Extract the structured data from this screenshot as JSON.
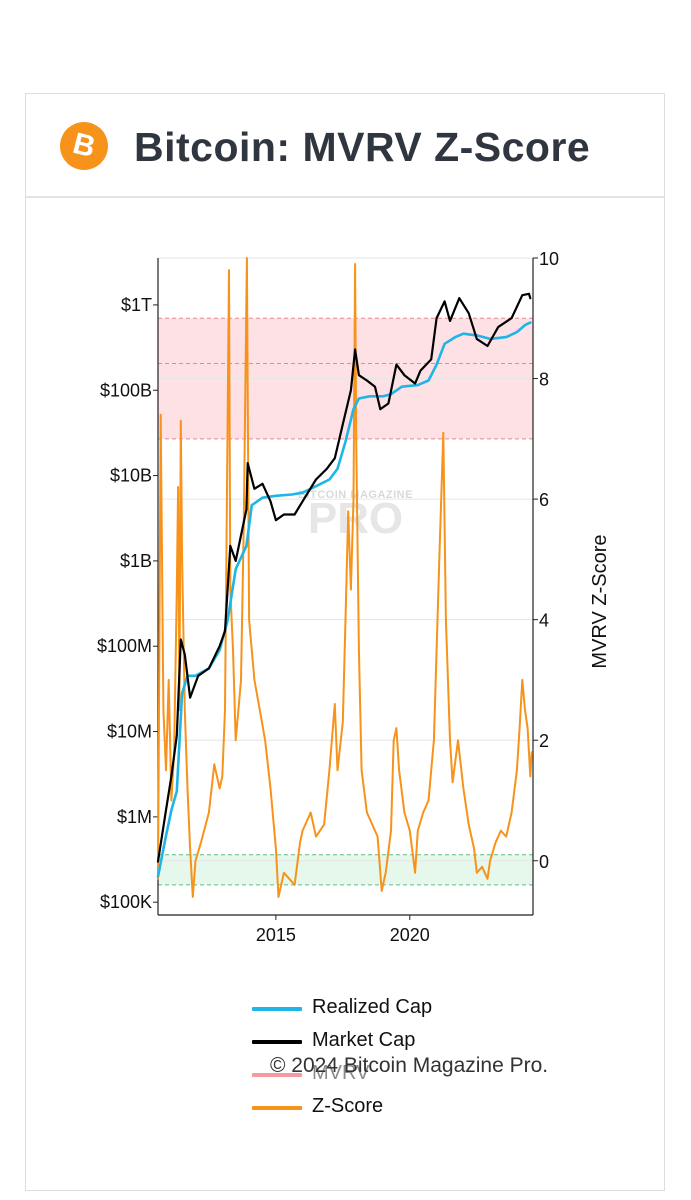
{
  "header": {
    "title": "Bitcoin: MVRV Z-Score",
    "logo_glyph": "B"
  },
  "chart_data": {
    "type": "line",
    "title": "Bitcoin: MVRV Z-Score",
    "left_axis": {
      "scale": "log",
      "ticks": [
        {
          "label": "$100K",
          "value": 100000
        },
        {
          "label": "$1M",
          "value": 1000000
        },
        {
          "label": "$10M",
          "value": 10000000
        },
        {
          "label": "$100M",
          "value": 100000000
        },
        {
          "label": "$1B",
          "value": 1000000000
        },
        {
          "label": "$10B",
          "value": 10000000000
        },
        {
          "label": "$100B",
          "value": 100000000000
        },
        {
          "label": "$1T",
          "value": 1000000000000
        }
      ]
    },
    "right_axis": {
      "label": "MVRV Z-Score",
      "ylim": [
        -0.9,
        10
      ],
      "ticks": [
        "0",
        "2",
        "4",
        "6",
        "8",
        "10"
      ]
    },
    "x_axis": {
      "range": [
        2010.6,
        2024.6
      ],
      "ticks": [
        {
          "label": "2015",
          "value": 2015
        },
        {
          "label": "2020",
          "value": 2020
        }
      ]
    },
    "bands": [
      {
        "name": "overvalued",
        "zmin": 7.0,
        "zmax": 9.0,
        "color": "#fde1e4",
        "lines": [
          7.0,
          8.25,
          9.0
        ]
      },
      {
        "name": "undervalued",
        "zmin": -0.4,
        "zmax": 0.1,
        "color": "#e6f7ec",
        "lines": [
          -0.4,
          0.1
        ]
      }
    ],
    "series": [
      {
        "name": "Realized Cap",
        "axis": "left",
        "color": "#1fb5e6",
        "points": [
          [
            2010.6,
            200000
          ],
          [
            2010.9,
            600000
          ],
          [
            2011.1,
            1200000
          ],
          [
            2011.3,
            2000000
          ],
          [
            2011.5,
            28000000
          ],
          [
            2011.7,
            45000000
          ],
          [
            2012.0,
            45000000
          ],
          [
            2012.5,
            55000000
          ],
          [
            2012.9,
            90000000
          ],
          [
            2013.2,
            200000000
          ],
          [
            2013.5,
            800000000
          ],
          [
            2013.9,
            1500000000
          ],
          [
            2014.1,
            4500000000
          ],
          [
            2014.5,
            5500000000
          ],
          [
            2015.0,
            5800000000
          ],
          [
            2015.6,
            6000000000
          ],
          [
            2016.0,
            6300000000
          ],
          [
            2016.5,
            7500000000
          ],
          [
            2017.0,
            9000000000
          ],
          [
            2017.3,
            12000000000
          ],
          [
            2017.6,
            25000000000
          ],
          [
            2017.9,
            60000000000
          ],
          [
            2018.1,
            80000000000
          ],
          [
            2018.5,
            85000000000
          ],
          [
            2019.0,
            85000000000
          ],
          [
            2019.3,
            90000000000
          ],
          [
            2019.7,
            110000000000
          ],
          [
            2020.3,
            115000000000
          ],
          [
            2020.7,
            130000000000
          ],
          [
            2021.0,
            200000000000
          ],
          [
            2021.3,
            350000000000
          ],
          [
            2021.7,
            420000000000
          ],
          [
            2022.0,
            460000000000
          ],
          [
            2022.5,
            440000000000
          ],
          [
            2023.0,
            400000000000
          ],
          [
            2023.6,
            420000000000
          ],
          [
            2024.0,
            480000000000
          ],
          [
            2024.3,
            580000000000
          ],
          [
            2024.5,
            620000000000
          ]
        ]
      },
      {
        "name": "Market Cap",
        "axis": "left",
        "color": "#000000",
        "points": [
          [
            2010.6,
            300000
          ],
          [
            2010.9,
            1200000
          ],
          [
            2011.1,
            3000000
          ],
          [
            2011.3,
            9000000
          ],
          [
            2011.45,
            120000000
          ],
          [
            2011.6,
            80000000
          ],
          [
            2011.8,
            25000000
          ],
          [
            2012.1,
            45000000
          ],
          [
            2012.5,
            55000000
          ],
          [
            2012.9,
            100000000
          ],
          [
            2013.1,
            150000000
          ],
          [
            2013.3,
            1500000000
          ],
          [
            2013.5,
            1000000000
          ],
          [
            2013.9,
            4000000000
          ],
          [
            2013.95,
            14000000000
          ],
          [
            2014.2,
            7000000000
          ],
          [
            2014.5,
            8000000000
          ],
          [
            2014.8,
            5000000000
          ],
          [
            2015.0,
            3000000000
          ],
          [
            2015.3,
            3500000000
          ],
          [
            2015.7,
            3500000000
          ],
          [
            2016.0,
            5000000000
          ],
          [
            2016.5,
            9000000000
          ],
          [
            2016.9,
            12000000000
          ],
          [
            2017.2,
            16000000000
          ],
          [
            2017.5,
            40000000000
          ],
          [
            2017.8,
            100000000000
          ],
          [
            2017.96,
            300000000000
          ],
          [
            2018.1,
            150000000000
          ],
          [
            2018.4,
            130000000000
          ],
          [
            2018.7,
            110000000000
          ],
          [
            2018.9,
            60000000000
          ],
          [
            2019.2,
            70000000000
          ],
          [
            2019.5,
            200000000000
          ],
          [
            2019.8,
            150000000000
          ],
          [
            2020.2,
            120000000000
          ],
          [
            2020.4,
            170000000000
          ],
          [
            2020.8,
            230000000000
          ],
          [
            2021.0,
            700000000000
          ],
          [
            2021.3,
            1100000000000
          ],
          [
            2021.5,
            650000000000
          ],
          [
            2021.85,
            1200000000000
          ],
          [
            2022.2,
            800000000000
          ],
          [
            2022.5,
            400000000000
          ],
          [
            2022.9,
            330000000000
          ],
          [
            2023.3,
            550000000000
          ],
          [
            2023.8,
            700000000000
          ],
          [
            2024.2,
            1300000000000
          ],
          [
            2024.45,
            1350000000000
          ],
          [
            2024.5,
            1200000000000
          ]
        ]
      },
      {
        "name": "MVRV",
        "axis": "right",
        "color": "#f39aa0",
        "points": []
      },
      {
        "name": "Z-Score",
        "axis": "right",
        "color": "#f7931a",
        "points": [
          [
            2010.6,
            -0.3
          ],
          [
            2010.7,
            7.4
          ],
          [
            2010.8,
            2.5
          ],
          [
            2010.9,
            1.5
          ],
          [
            2011.0,
            3.0
          ],
          [
            2011.1,
            1.0
          ],
          [
            2011.2,
            1.8
          ],
          [
            2011.3,
            4.5
          ],
          [
            2011.35,
            6.2
          ],
          [
            2011.4,
            2.5
          ],
          [
            2011.45,
            7.3
          ],
          [
            2011.5,
            5.0
          ],
          [
            2011.6,
            2.5
          ],
          [
            2011.7,
            1.2
          ],
          [
            2011.8,
            0.2
          ],
          [
            2011.9,
            -0.6
          ],
          [
            2012.0,
            0.0
          ],
          [
            2012.2,
            0.3
          ],
          [
            2012.5,
            0.8
          ],
          [
            2012.7,
            1.6
          ],
          [
            2012.9,
            1.2
          ],
          [
            2013.0,
            1.4
          ],
          [
            2013.1,
            2.5
          ],
          [
            2013.25,
            9.8
          ],
          [
            2013.3,
            4.5
          ],
          [
            2013.4,
            3.5
          ],
          [
            2013.5,
            2.0
          ],
          [
            2013.6,
            2.5
          ],
          [
            2013.7,
            3.0
          ],
          [
            2013.8,
            5.5
          ],
          [
            2013.92,
            10.0
          ],
          [
            2014.0,
            4.0
          ],
          [
            2014.2,
            3.0
          ],
          [
            2014.4,
            2.5
          ],
          [
            2014.6,
            2.0
          ],
          [
            2014.8,
            1.2
          ],
          [
            2015.0,
            0.2
          ],
          [
            2015.1,
            -0.6
          ],
          [
            2015.3,
            -0.2
          ],
          [
            2015.5,
            -0.3
          ],
          [
            2015.7,
            -0.4
          ],
          [
            2015.9,
            0.3
          ],
          [
            2016.0,
            0.5
          ],
          [
            2016.3,
            0.8
          ],
          [
            2016.5,
            0.4
          ],
          [
            2016.8,
            0.6
          ],
          [
            2017.0,
            1.5
          ],
          [
            2017.2,
            2.6
          ],
          [
            2017.3,
            1.5
          ],
          [
            2017.5,
            2.3
          ],
          [
            2017.6,
            4.0
          ],
          [
            2017.7,
            5.8
          ],
          [
            2017.8,
            4.5
          ],
          [
            2017.9,
            6.0
          ],
          [
            2017.96,
            9.9
          ],
          [
            2018.0,
            7.0
          ],
          [
            2018.1,
            3.5
          ],
          [
            2018.2,
            1.5
          ],
          [
            2018.4,
            0.8
          ],
          [
            2018.6,
            0.6
          ],
          [
            2018.8,
            0.4
          ],
          [
            2018.95,
            -0.5
          ],
          [
            2019.1,
            -0.2
          ],
          [
            2019.3,
            0.5
          ],
          [
            2019.4,
            2.0
          ],
          [
            2019.5,
            2.2
          ],
          [
            2019.6,
            1.5
          ],
          [
            2019.8,
            0.8
          ],
          [
            2020.0,
            0.5
          ],
          [
            2020.2,
            -0.2
          ],
          [
            2020.3,
            0.5
          ],
          [
            2020.5,
            0.8
          ],
          [
            2020.7,
            1.0
          ],
          [
            2020.9,
            2.0
          ],
          [
            2021.0,
            3.5
          ],
          [
            2021.1,
            5.0
          ],
          [
            2021.25,
            7.1
          ],
          [
            2021.35,
            4.0
          ],
          [
            2021.5,
            2.0
          ],
          [
            2021.6,
            1.3
          ],
          [
            2021.8,
            2.0
          ],
          [
            2021.9,
            1.6
          ],
          [
            2022.0,
            1.2
          ],
          [
            2022.2,
            0.6
          ],
          [
            2022.4,
            0.2
          ],
          [
            2022.5,
            -0.2
          ],
          [
            2022.7,
            -0.1
          ],
          [
            2022.9,
            -0.3
          ],
          [
            2023.0,
            0.0
          ],
          [
            2023.2,
            0.3
          ],
          [
            2023.4,
            0.5
          ],
          [
            2023.6,
            0.4
          ],
          [
            2023.8,
            0.8
          ],
          [
            2024.0,
            1.5
          ],
          [
            2024.1,
            2.2
          ],
          [
            2024.2,
            3.0
          ],
          [
            2024.3,
            2.5
          ],
          [
            2024.4,
            2.2
          ],
          [
            2024.5,
            1.4
          ],
          [
            2024.55,
            1.8
          ]
        ]
      }
    ]
  },
  "legend": {
    "items": [
      {
        "label": "Realized Cap",
        "color": "#1fb5e6",
        "muted": false
      },
      {
        "label": "Market Cap",
        "color": "#000000",
        "muted": false
      },
      {
        "label": "MVRV",
        "color": "#f39aa0",
        "muted": true
      },
      {
        "label": "Z-Score",
        "color": "#f7931a",
        "muted": false
      }
    ]
  },
  "watermark": {
    "top": "BITCOIN MAGAZINE",
    "bottom": "PRO"
  },
  "footer": {
    "copyright": "© 2024 Bitcoin Magazine Pro."
  }
}
